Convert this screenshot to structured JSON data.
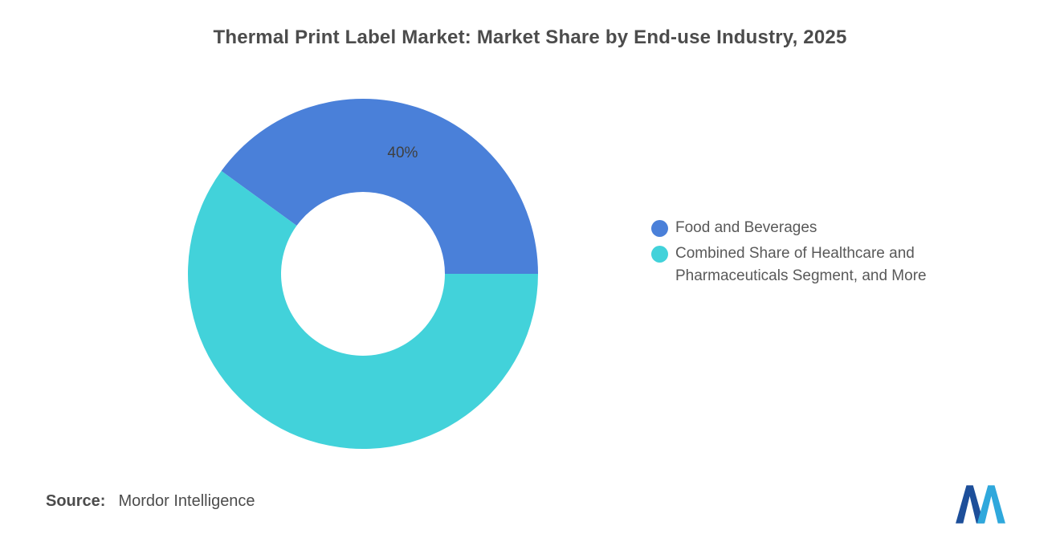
{
  "title": "Thermal Print Label Market: Market Share by End-use Industry, 2025",
  "chart_data": {
    "type": "pie",
    "subtype": "donut",
    "title": "Thermal Print Label Market: Market Share by End-use Industry, 2025",
    "units": "percent market share",
    "start_angle_deg": -54,
    "inner_radius_ratio": 0.47,
    "legend_position": "right",
    "grid": false,
    "slices": [
      {
        "label": "Food and Beverages",
        "value": 40,
        "data_label": "40%",
        "color": "#4A80D9"
      },
      {
        "label": "Combined Share of Healthcare and Pharmaceuticals Segment, and More",
        "value": 60,
        "data_label": "",
        "color": "#42D2DA"
      }
    ]
  },
  "source": {
    "label": "Source:",
    "value": "Mordor Intelligence"
  },
  "logo": {
    "name": "Mordor Intelligence logo",
    "color_dark": "#1D4F9A",
    "color_light": "#2FA8DC"
  }
}
